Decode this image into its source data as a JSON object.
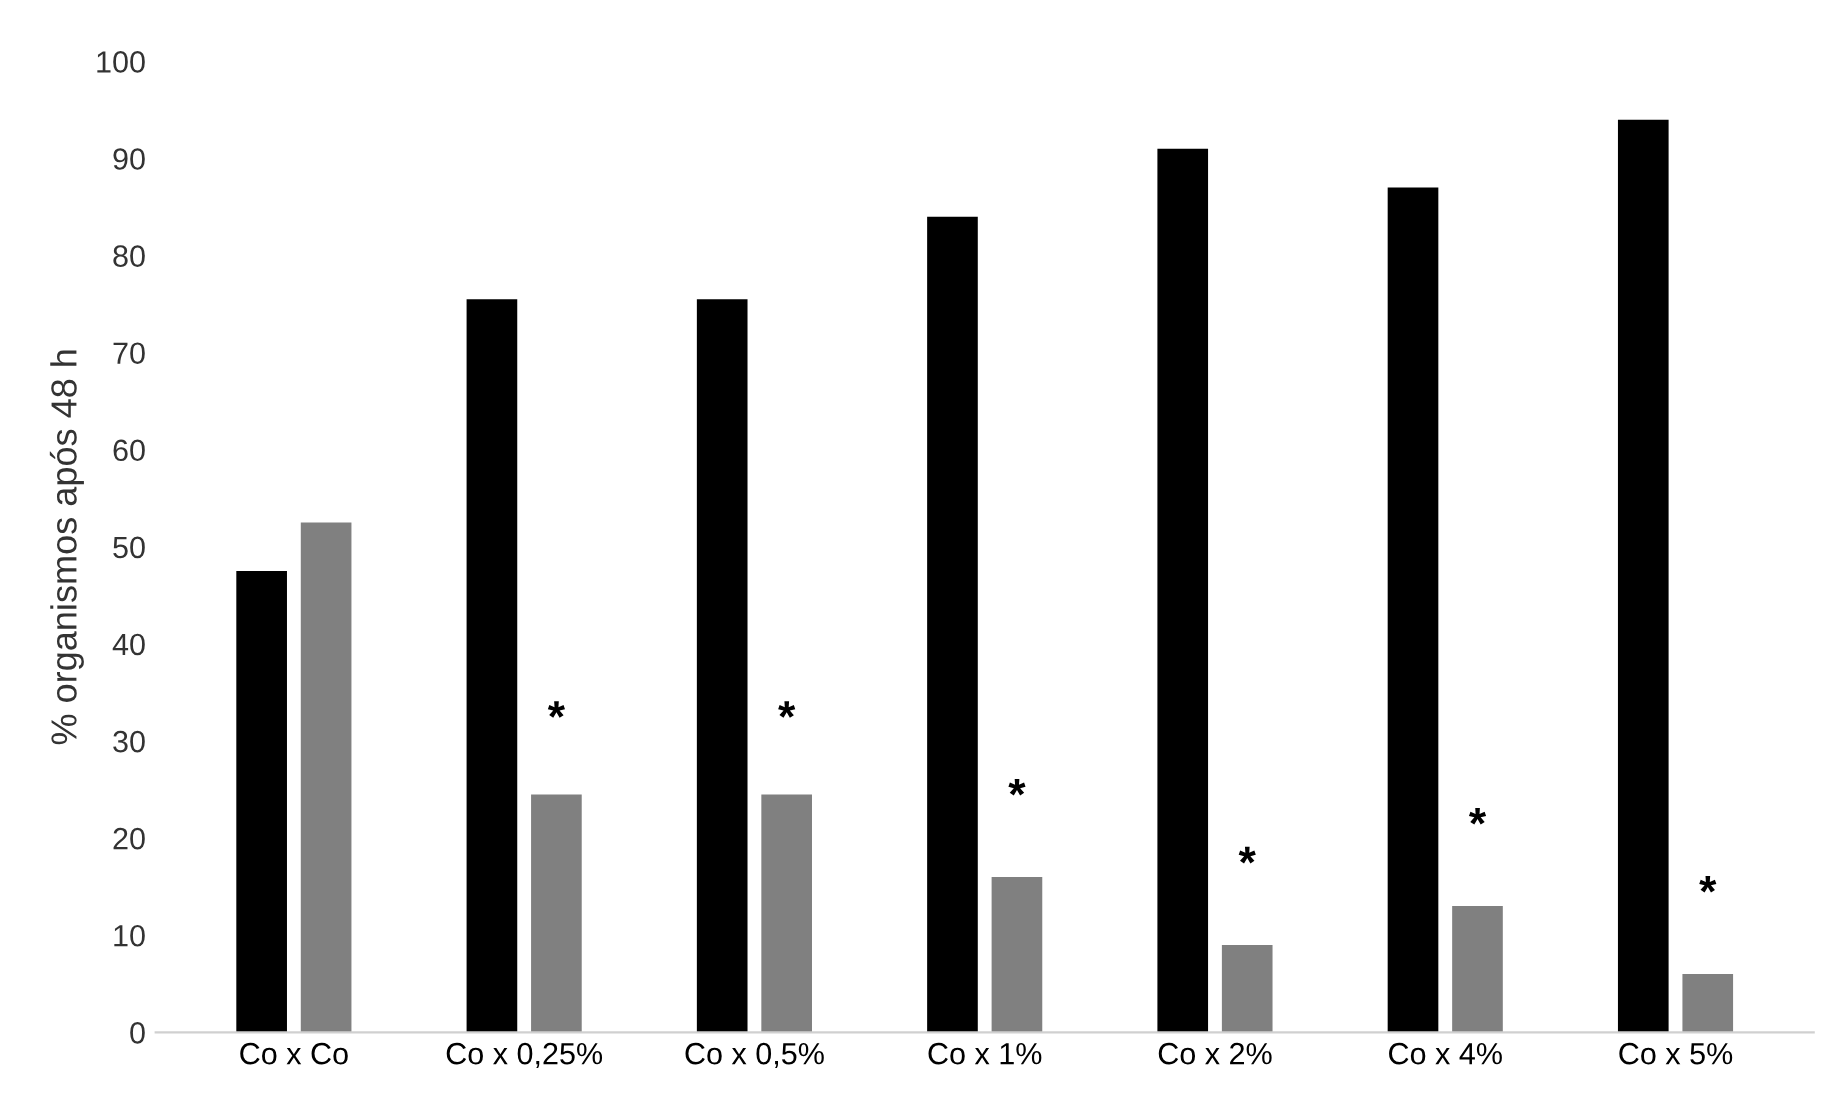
{
  "chart_data": {
    "type": "bar",
    "ylabel": "% organismos após 48 h",
    "categories": [
      "Co x Co",
      "Co x 0,25%",
      "Co x 0,5%",
      "Co x 1%",
      "Co x 2%",
      "Co x 4%",
      "Co x 5%"
    ],
    "series": [
      {
        "color": "#000000",
        "values": [
          47.5,
          75.5,
          75.5,
          84,
          91,
          87,
          94
        ]
      },
      {
        "color": "#808080",
        "values": [
          52.5,
          24.5,
          24.5,
          16,
          9,
          13,
          6
        ]
      }
    ],
    "ylim": [
      0,
      100
    ],
    "yticks": [
      0,
      10,
      20,
      30,
      40,
      50,
      60,
      70,
      80,
      90,
      100
    ],
    "grid": false,
    "legend": false,
    "annotations": [
      {
        "text": "*",
        "x": "Co x 0,25%",
        "y": 30
      },
      {
        "text": "*",
        "x": "Co x 0,5%",
        "y": 30
      },
      {
        "text": "*",
        "x": "Co x 1%",
        "y": 22
      },
      {
        "text": "*",
        "x": "Co x 2%",
        "y": 15
      },
      {
        "text": "*",
        "x": "Co x 4%",
        "y": 19
      },
      {
        "text": "*",
        "x": "Co x 5%",
        "y": 12
      }
    ]
  }
}
